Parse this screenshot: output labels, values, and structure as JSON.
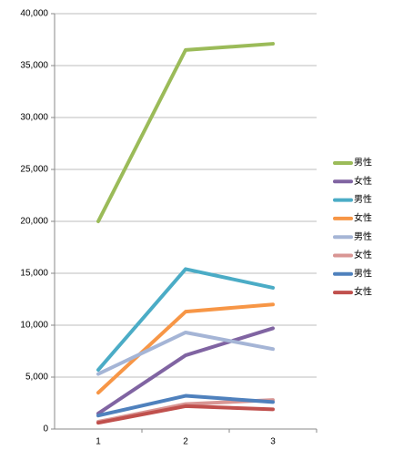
{
  "chart_data": {
    "type": "line",
    "categories": [
      "1",
      "2",
      "3"
    ],
    "series": [
      {
        "name": "男性",
        "color": "#9bbb59",
        "values": [
          20000,
          36500,
          37100
        ]
      },
      {
        "name": "女性",
        "color": "#8064a2",
        "values": [
          1500,
          7100,
          9700
        ]
      },
      {
        "name": "男性",
        "color": "#4bacc6",
        "values": [
          5700,
          15400,
          13600
        ]
      },
      {
        "name": "女性",
        "color": "#f79646",
        "values": [
          3500,
          11300,
          12000
        ]
      },
      {
        "name": "男性",
        "color": "#a5b5d6",
        "values": [
          5300,
          9300,
          7700
        ]
      },
      {
        "name": "女性",
        "color": "#d99694",
        "values": [
          700,
          2400,
          2800
        ]
      },
      {
        "name": "男性",
        "color": "#4f81bd",
        "values": [
          1300,
          3200,
          2600
        ]
      },
      {
        "name": "女性",
        "color": "#c0504d",
        "values": [
          600,
          2200,
          1900
        ]
      }
    ],
    "ylim": [
      0,
      40000
    ],
    "yticks": [
      0,
      {
        "value": 5000,
        "label": "5,000"
      },
      {
        "value": 10000,
        "label": "10,000"
      },
      {
        "value": 15000,
        "label": "15,000"
      },
      {
        "value": 20000,
        "label": "20,000"
      },
      {
        "value": 25000,
        "label": "25,000"
      },
      {
        "value": 30000,
        "label": "30,000"
      },
      {
        "value": 35000,
        "label": "35,000"
      },
      {
        "value": 40000,
        "label": "40,000"
      }
    ],
    "grid": true,
    "legend": "right"
  }
}
